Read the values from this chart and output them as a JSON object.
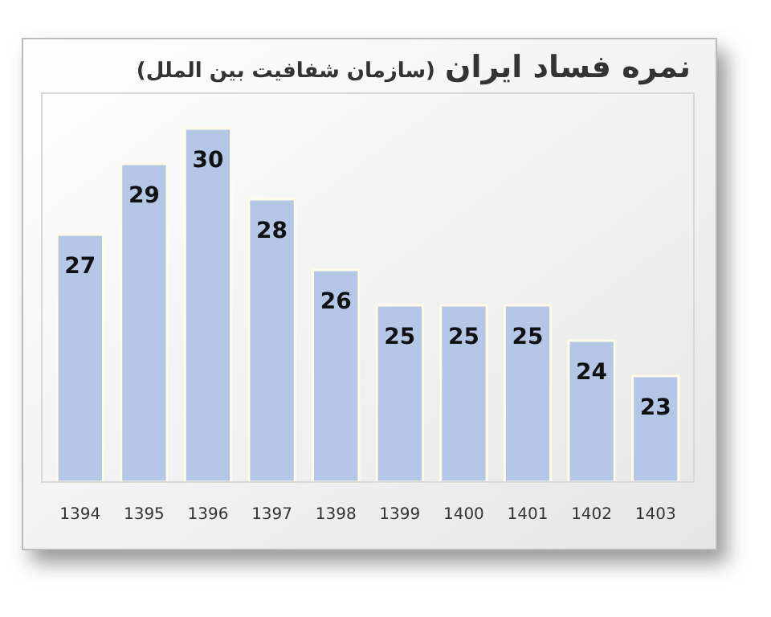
{
  "chart_data": {
    "type": "bar",
    "title": "نمره فساد ایران",
    "subtitle": "(سازمان شفافیت بین الملل)",
    "categories": [
      "1394",
      "1395",
      "1396",
      "1397",
      "1398",
      "1399",
      "1400",
      "1401",
      "1402",
      "1403"
    ],
    "values": [
      27,
      29,
      30,
      28,
      26,
      25,
      25,
      25,
      24,
      23
    ],
    "color": "#b4c7e7",
    "ylim": [
      20,
      31
    ],
    "data_labels": true
  }
}
